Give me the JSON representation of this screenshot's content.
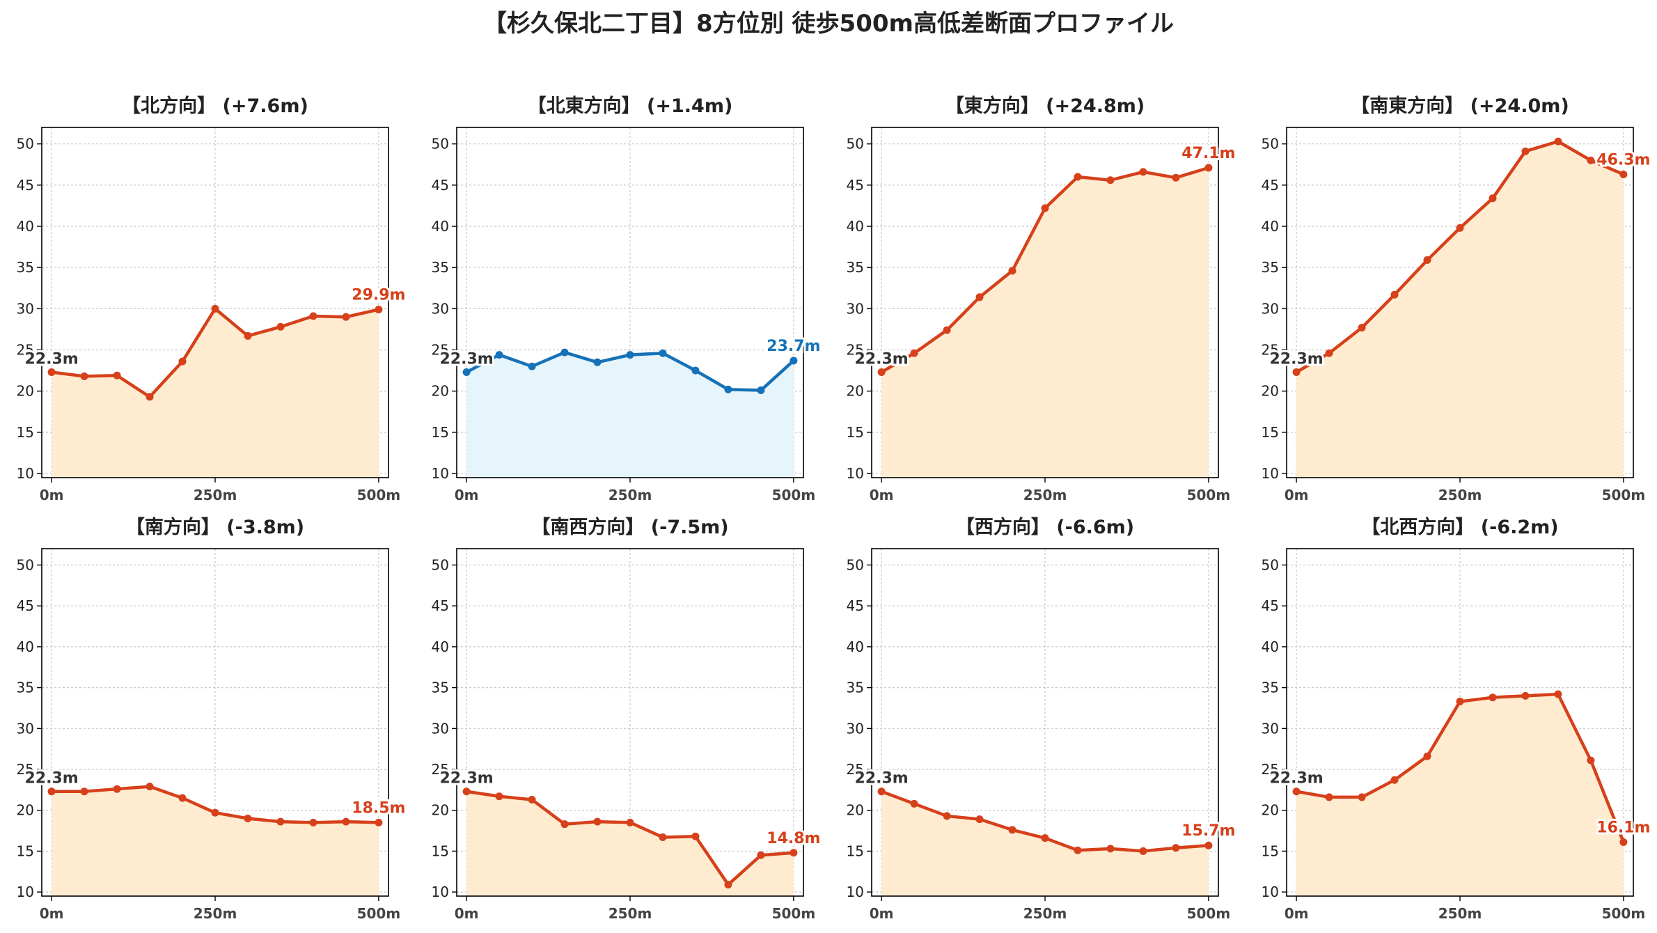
{
  "title": "【杉久保北二丁目】8方位別 徒歩500m高低差断面プロファイル",
  "colors": {
    "up_line": "#d6401a",
    "up_fill": "#ffecd0",
    "flat_line": "#1672b8",
    "flat_fill": "#e6f4fb",
    "start_label": "#333333",
    "grid": "#c8c8c8",
    "axis": "#000000"
  },
  "chart_data": [
    {
      "type": "area",
      "title": "【北方向】 (+7.6m)",
      "x": [
        0,
        50,
        100,
        150,
        200,
        250,
        300,
        350,
        400,
        450,
        500
      ],
      "xticks": [
        0,
        250,
        500
      ],
      "xtick_labels": [
        "0m",
        "250m",
        "500m"
      ],
      "yticks": [
        10,
        15,
        20,
        25,
        30,
        35,
        40,
        45,
        50
      ],
      "ylim": [
        9.5,
        52
      ],
      "xlim": [
        -15,
        515
      ],
      "grid": true,
      "series": [
        {
          "values": [
            22.3,
            21.8,
            21.9,
            19.3,
            23.6,
            30.0,
            26.7,
            27.8,
            29.1,
            29.0,
            29.9
          ]
        }
      ],
      "start_label": "22.3m",
      "end_label": "29.9m",
      "scheme": "orange"
    },
    {
      "type": "area",
      "title": "【北東方向】 (+1.4m)",
      "x": [
        0,
        50,
        100,
        150,
        200,
        250,
        300,
        350,
        400,
        450,
        500
      ],
      "xticks": [
        0,
        250,
        500
      ],
      "xtick_labels": [
        "0m",
        "250m",
        "500m"
      ],
      "yticks": [
        10,
        15,
        20,
        25,
        30,
        35,
        40,
        45,
        50
      ],
      "ylim": [
        9.5,
        52
      ],
      "xlim": [
        -15,
        515
      ],
      "grid": true,
      "series": [
        {
          "values": [
            22.3,
            24.4,
            23.0,
            24.7,
            23.5,
            24.4,
            24.6,
            22.5,
            20.2,
            20.1,
            23.7
          ]
        }
      ],
      "start_label": "22.3m",
      "end_label": "23.7m",
      "scheme": "blue"
    },
    {
      "type": "area",
      "title": "【東方向】 (+24.8m)",
      "x": [
        0,
        50,
        100,
        150,
        200,
        250,
        300,
        350,
        400,
        450,
        500
      ],
      "xticks": [
        0,
        250,
        500
      ],
      "xtick_labels": [
        "0m",
        "250m",
        "500m"
      ],
      "yticks": [
        10,
        15,
        20,
        25,
        30,
        35,
        40,
        45,
        50
      ],
      "ylim": [
        9.5,
        52
      ],
      "xlim": [
        -15,
        515
      ],
      "grid": true,
      "series": [
        {
          "values": [
            22.3,
            24.6,
            27.4,
            31.4,
            34.6,
            42.2,
            46.0,
            45.6,
            46.6,
            45.9,
            47.1
          ]
        }
      ],
      "start_label": "22.3m",
      "end_label": "47.1m",
      "scheme": "orange"
    },
    {
      "type": "area",
      "title": "【南東方向】 (+24.0m)",
      "x": [
        0,
        50,
        100,
        150,
        200,
        250,
        300,
        350,
        400,
        450,
        500
      ],
      "xticks": [
        0,
        250,
        500
      ],
      "xtick_labels": [
        "0m",
        "250m",
        "500m"
      ],
      "yticks": [
        10,
        15,
        20,
        25,
        30,
        35,
        40,
        45,
        50
      ],
      "ylim": [
        9.5,
        52
      ],
      "xlim": [
        -15,
        515
      ],
      "grid": true,
      "series": [
        {
          "values": [
            22.3,
            24.6,
            27.7,
            31.7,
            35.9,
            39.8,
            43.4,
            49.1,
            50.3,
            48.0,
            46.3
          ]
        }
      ],
      "start_label": "22.3m",
      "end_label": "46.3m",
      "scheme": "orange"
    },
    {
      "type": "area",
      "title": "【南方向】 (-3.8m)",
      "x": [
        0,
        50,
        100,
        150,
        200,
        250,
        300,
        350,
        400,
        450,
        500
      ],
      "xticks": [
        0,
        250,
        500
      ],
      "xtick_labels": [
        "0m",
        "250m",
        "500m"
      ],
      "yticks": [
        10,
        15,
        20,
        25,
        30,
        35,
        40,
        45,
        50
      ],
      "ylim": [
        9.5,
        52
      ],
      "xlim": [
        -15,
        515
      ],
      "grid": true,
      "series": [
        {
          "values": [
            22.3,
            22.3,
            22.6,
            22.9,
            21.5,
            19.7,
            19.0,
            18.6,
            18.5,
            18.6,
            18.5
          ]
        }
      ],
      "start_label": "22.3m",
      "end_label": "18.5m",
      "scheme": "orange"
    },
    {
      "type": "area",
      "title": "【南西方向】 (-7.5m)",
      "x": [
        0,
        50,
        100,
        150,
        200,
        250,
        300,
        350,
        400,
        450,
        500
      ],
      "xticks": [
        0,
        250,
        500
      ],
      "xtick_labels": [
        "0m",
        "250m",
        "500m"
      ],
      "yticks": [
        10,
        15,
        20,
        25,
        30,
        35,
        40,
        45,
        50
      ],
      "ylim": [
        9.5,
        52
      ],
      "xlim": [
        -15,
        515
      ],
      "grid": true,
      "series": [
        {
          "values": [
            22.3,
            21.7,
            21.3,
            18.3,
            18.6,
            18.5,
            16.7,
            16.8,
            10.9,
            14.5,
            14.8
          ]
        }
      ],
      "start_label": "22.3m",
      "end_label": "14.8m",
      "scheme": "orange"
    },
    {
      "type": "area",
      "title": "【西方向】 (-6.6m)",
      "x": [
        0,
        50,
        100,
        150,
        200,
        250,
        300,
        350,
        400,
        450,
        500
      ],
      "xticks": [
        0,
        250,
        500
      ],
      "xtick_labels": [
        "0m",
        "250m",
        "500m"
      ],
      "yticks": [
        10,
        15,
        20,
        25,
        30,
        35,
        40,
        45,
        50
      ],
      "ylim": [
        9.5,
        52
      ],
      "xlim": [
        -15,
        515
      ],
      "grid": true,
      "series": [
        {
          "values": [
            22.3,
            20.8,
            19.3,
            18.9,
            17.6,
            16.6,
            15.1,
            15.3,
            15.0,
            15.4,
            15.7
          ]
        }
      ],
      "start_label": "22.3m",
      "end_label": "15.7m",
      "scheme": "orange"
    },
    {
      "type": "area",
      "title": "【北西方向】 (-6.2m)",
      "x": [
        0,
        50,
        100,
        150,
        200,
        250,
        300,
        350,
        400,
        450,
        500
      ],
      "xticks": [
        0,
        250,
        500
      ],
      "xtick_labels": [
        "0m",
        "250m",
        "500m"
      ],
      "yticks": [
        10,
        15,
        20,
        25,
        30,
        35,
        40,
        45,
        50
      ],
      "ylim": [
        9.5,
        52
      ],
      "xlim": [
        -15,
        515
      ],
      "grid": true,
      "series": [
        {
          "values": [
            22.3,
            21.6,
            21.6,
            23.7,
            26.6,
            33.3,
            33.8,
            34.0,
            34.2,
            26.1,
            16.1
          ]
        }
      ],
      "start_label": "22.3m",
      "end_label": "16.1m",
      "scheme": "orange"
    }
  ]
}
